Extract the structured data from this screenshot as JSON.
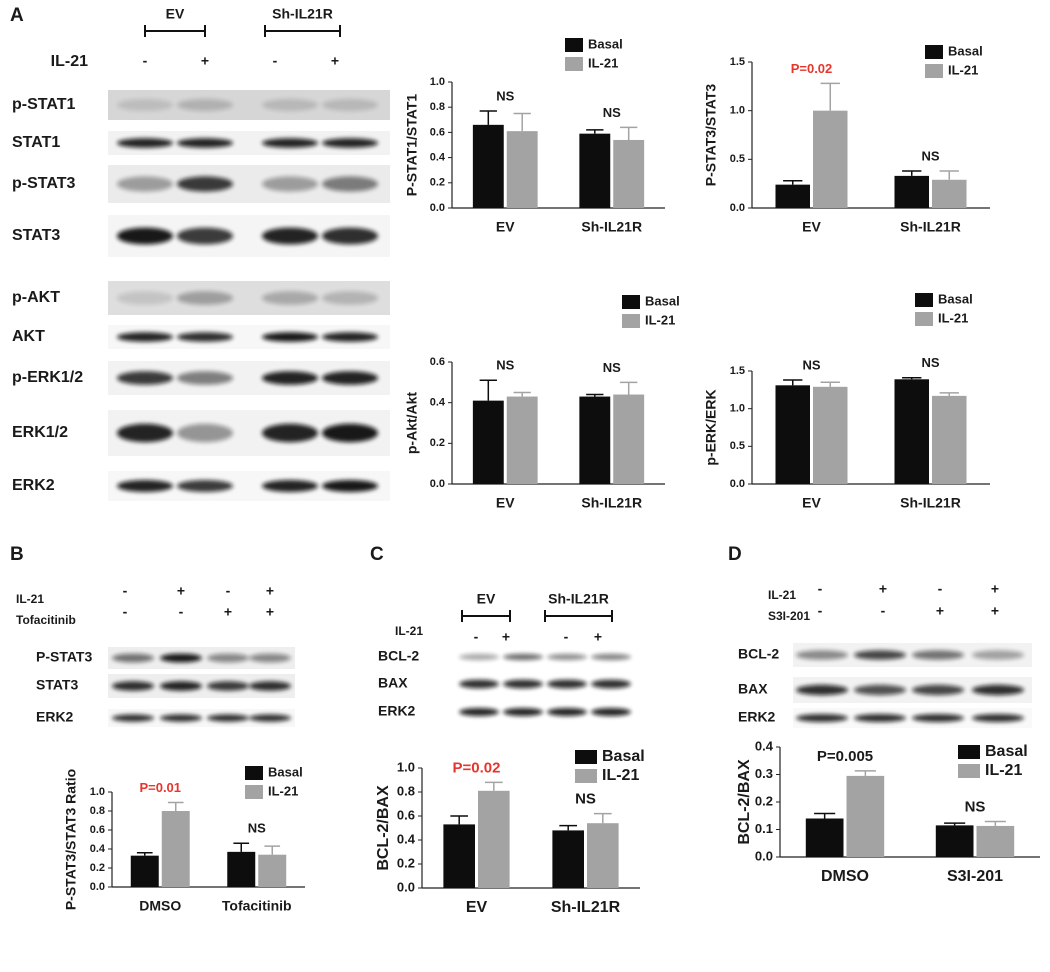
{
  "chart_data": [
    {
      "type": "bar",
      "y_label": "P-STAT1/STAT1",
      "categories": [
        "EV",
        "Sh-IL21R"
      ],
      "series": [
        {
          "name": "Basal",
          "color": "#0d0d0d",
          "values": [
            0.66,
            0.59
          ],
          "errors": [
            0.11,
            0.03
          ]
        },
        {
          "name": "IL-21",
          "color": "#a3a3a3",
          "values": [
            0.61,
            0.54
          ],
          "errors": [
            0.14,
            0.1
          ]
        }
      ],
      "ylim": [
        0,
        1
      ],
      "yticks": [
        {
          "value": 0,
          "label": "0.0"
        },
        0.2,
        0.4,
        0.6,
        0.8,
        {
          "value": 1,
          "label": "1.0"
        }
      ],
      "annotations": [
        {
          "text": "NS",
          "color": "#1a1a1a"
        },
        {
          "text": "NS",
          "color": "#1a1a1a"
        }
      ]
    },
    {
      "type": "bar",
      "y_label": "P-STAT3/STAT3",
      "categories": [
        "EV",
        "Sh-IL21R"
      ],
      "series": [
        {
          "name": "Basal",
          "color": "#0d0d0d",
          "values": [
            0.24,
            0.33
          ],
          "errors": [
            0.04,
            0.05
          ]
        },
        {
          "name": "IL-21",
          "color": "#a3a3a3",
          "values": [
            1.0,
            0.29
          ],
          "errors": [
            0.28,
            0.09
          ]
        }
      ],
      "ylim": [
        0,
        1.5
      ],
      "yticks": [
        {
          "value": 0,
          "label": "0.0"
        },
        0.5,
        {
          "value": 1,
          "label": "1.0"
        },
        1.5
      ],
      "annotations": [
        {
          "text": "P=0.02",
          "color": "#e8352b"
        },
        {
          "text": "NS",
          "color": "#1a1a1a"
        }
      ]
    },
    {
      "type": "bar",
      "y_label": "p-Akt/Akt",
      "categories": [
        "EV",
        "Sh-IL21R"
      ],
      "series": [
        {
          "name": "Basal",
          "color": "#0d0d0d",
          "values": [
            0.41,
            0.43
          ],
          "errors": [
            0.1,
            0.01
          ]
        },
        {
          "name": "IL-21",
          "color": "#a3a3a3",
          "values": [
            0.43,
            0.44
          ],
          "errors": [
            0.02,
            0.06
          ]
        }
      ],
      "ylim": [
        0,
        0.6
      ],
      "yticks": [
        {
          "value": 0,
          "label": "0.0"
        },
        0.2,
        0.4,
        0.6
      ],
      "annotations": [
        {
          "text": "NS",
          "color": "#1a1a1a"
        },
        {
          "text": "NS",
          "color": "#1a1a1a"
        }
      ]
    },
    {
      "type": "bar",
      "y_label": "p-ERK/ERK",
      "categories": [
        "EV",
        "Sh-IL21R"
      ],
      "series": [
        {
          "name": "Basal",
          "color": "#0d0d0d",
          "values": [
            1.31,
            1.39
          ],
          "errors": [
            0.07,
            0.02
          ]
        },
        {
          "name": "IL-21",
          "color": "#a3a3a3",
          "values": [
            1.29,
            1.17
          ],
          "errors": [
            0.06,
            0.04
          ]
        }
      ],
      "ylim": [
        0,
        1.5
      ],
      "yticks": [
        {
          "value": 0,
          "label": "0.0"
        },
        0.5,
        {
          "value": 1,
          "label": "1.0"
        },
        1.5
      ],
      "annotations": [
        {
          "text": "NS",
          "color": "#1a1a1a"
        },
        {
          "text": "NS",
          "color": "#1a1a1a"
        }
      ]
    },
    {
      "type": "bar",
      "y_label": "P-STAT3/STAT3 Ratio",
      "categories": [
        "DMSO",
        "Tofacitinib"
      ],
      "series": [
        {
          "name": "Basal",
          "color": "#0d0d0d",
          "values": [
            0.33,
            0.37
          ],
          "errors": [
            0.03,
            0.09
          ]
        },
        {
          "name": "IL-21",
          "color": "#a3a3a3",
          "values": [
            0.8,
            0.34
          ],
          "errors": [
            0.09,
            0.09
          ]
        }
      ],
      "ylim": [
        0,
        1
      ],
      "yticks": [
        {
          "value": 0,
          "label": "0.0"
        },
        0.2,
        0.4,
        0.6,
        0.8,
        {
          "value": 1,
          "label": "1.0"
        }
      ],
      "annotations": [
        {
          "text": "P=0.01",
          "color": "#e8352b"
        },
        {
          "text": "NS",
          "color": "#1a1a1a"
        }
      ]
    },
    {
      "type": "bar",
      "y_label": "BCL-2/BAX",
      "categories": [
        "EV",
        "Sh-IL21R"
      ],
      "series": [
        {
          "name": "Basal",
          "color": "#0d0d0d",
          "values": [
            0.53,
            0.48
          ],
          "errors": [
            0.07,
            0.04
          ]
        },
        {
          "name": "IL-21",
          "color": "#a3a3a3",
          "values": [
            0.81,
            0.54
          ],
          "errors": [
            0.07,
            0.08
          ]
        }
      ],
      "ylim": [
        0,
        1
      ],
      "yticks": [
        {
          "value": 0,
          "label": "0.0"
        },
        0.2,
        0.4,
        0.6,
        0.8,
        {
          "value": 1,
          "label": "1.0"
        }
      ],
      "annotations": [
        {
          "text": "P=0.02",
          "color": "#e8352b"
        },
        {
          "text": "NS",
          "color": "#1a1a1a"
        }
      ]
    },
    {
      "type": "bar",
      "y_label": "BCL-2/BAX",
      "categories": [
        "DMSO",
        "S3I-201"
      ],
      "series": [
        {
          "name": "Basal",
          "color": "#0d0d0d",
          "values": [
            0.14,
            0.115
          ],
          "errors": [
            0.018,
            0.008
          ]
        },
        {
          "name": "IL-21",
          "color": "#a3a3a3",
          "values": [
            0.295,
            0.113
          ],
          "errors": [
            0.018,
            0.016
          ]
        }
      ],
      "ylim": [
        0,
        0.4
      ],
      "yticks": [
        {
          "value": 0,
          "label": "0.0"
        },
        0.1,
        0.2,
        0.3,
        0.4
      ],
      "annotations": [
        {
          "text": "P=0.005",
          "color": "#1a1a1a"
        },
        {
          "text": "NS",
          "color": "#1a1a1a"
        }
      ]
    }
  ],
  "blots": {
    "A": {
      "panel": "A",
      "groups": [
        "EV",
        "Sh-IL21R"
      ],
      "treatments": [
        {
          "name": "IL-21",
          "signs": [
            "-",
            "+",
            "-",
            "+"
          ]
        }
      ],
      "rows": [
        "p-STAT1",
        "STAT1",
        "p-STAT3",
        "STAT3",
        "p-AKT",
        "AKT",
        "p-ERK1/2",
        "ERK1/2",
        "ERK2"
      ]
    },
    "B": {
      "panel": "B",
      "treatments": [
        {
          "name": "IL-21",
          "signs": [
            "-",
            "+",
            "-",
            "+"
          ]
        },
        {
          "name": "Tofacitinib",
          "signs": [
            "-",
            "-",
            "+",
            "+"
          ]
        }
      ],
      "rows": [
        "P-STAT3",
        "STAT3",
        "ERK2"
      ]
    },
    "C": {
      "panel": "C",
      "groups": [
        "EV",
        "Sh-IL21R"
      ],
      "treatments": [
        {
          "name": "IL-21",
          "signs": [
            "-",
            "+",
            "-",
            "+"
          ]
        }
      ],
      "rows": [
        "BCL-2",
        "BAX",
        "ERK2"
      ]
    },
    "D": {
      "panel": "D",
      "treatments": [
        {
          "name": "IL-21",
          "signs": [
            "-",
            "+",
            "-",
            "+"
          ]
        },
        {
          "name": "S3I-201",
          "signs": [
            "-",
            "-",
            "+",
            "+"
          ]
        }
      ],
      "rows": [
        "BCL-2",
        "BAX",
        "ERK2"
      ]
    }
  }
}
